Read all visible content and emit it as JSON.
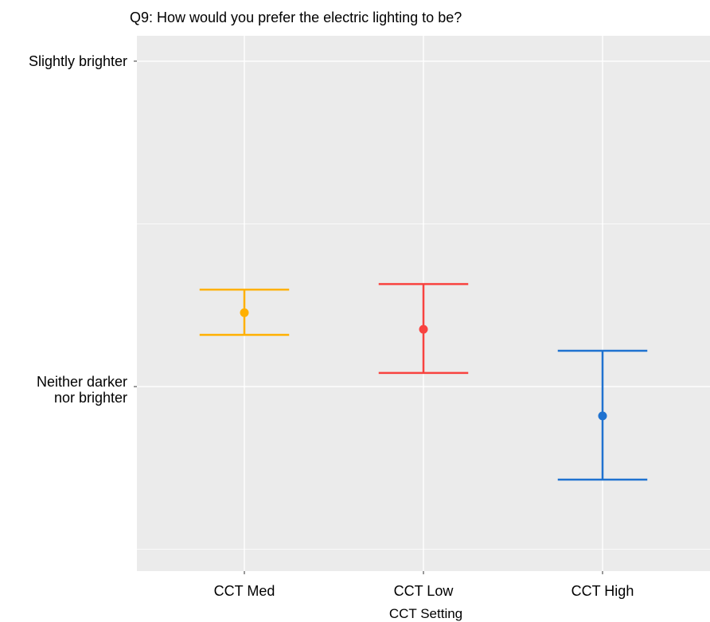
{
  "chart_data": {
    "type": "errorbar",
    "title": "Q9: How would you prefer the electric lighting to be?",
    "x_label": "CCT Setting",
    "categories": [
      "CCT Med",
      "CCT Low",
      "CCT High"
    ],
    "values": [
      3.227,
      3.176,
      2.91
    ],
    "lower": [
      3.159,
      3.042,
      2.714
    ],
    "upper": [
      3.298,
      3.315,
      3.11
    ],
    "colors": [
      "#FFB000",
      "#F8423F",
      "#1F72D0"
    ],
    "ylim": [
      2.433,
      4.078
    ],
    "yticks": [
      {
        "value": 3,
        "label": "Neither darker\nnor brighter"
      },
      {
        "value": 4,
        "label": "Slightly brighter"
      }
    ],
    "yminor": [
      2.5,
      3.5
    ],
    "grid": true,
    "panel_color": "#EBEBEB"
  }
}
